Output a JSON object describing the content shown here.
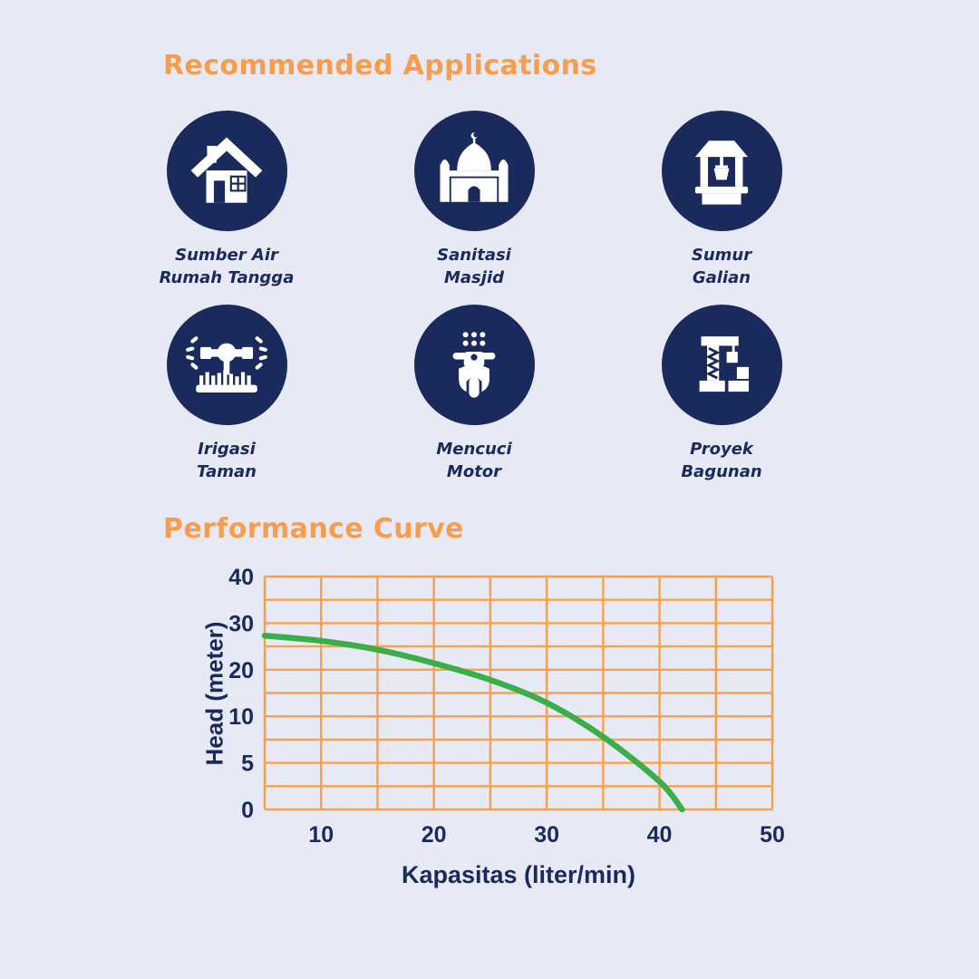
{
  "colors": {
    "background": "#e7eaf4",
    "navy": "#1b2a5c",
    "orange": "#f89c4d",
    "grid_orange": "#f6a14f",
    "green": "#3cae49",
    "white": "#ffffff"
  },
  "applications": {
    "heading": "Recommended Applications",
    "items": [
      {
        "icon": "house-icon",
        "label_lines": [
          "Sumber Air",
          "Rumah Tangga"
        ]
      },
      {
        "icon": "mosque-icon",
        "label_lines": [
          "Sanitasi",
          "Masjid"
        ]
      },
      {
        "icon": "well-icon",
        "label_lines": [
          "Sumur",
          "Galian"
        ]
      },
      {
        "icon": "sprinkler-icon",
        "label_lines": [
          "Irigasi",
          "Taman"
        ]
      },
      {
        "icon": "motorbike-icon",
        "label_lines": [
          "Mencuci",
          "Motor"
        ]
      },
      {
        "icon": "crane-icon",
        "label_lines": [
          "Proyek",
          "Bagunan"
        ]
      }
    ]
  },
  "performance": {
    "heading": "Performance Curve"
  },
  "chart_data": {
    "type": "line",
    "title": "Performance Curve",
    "xlabel": "Kapasitas (liter/min)",
    "ylabel": "Head (meter)",
    "x_range": [
      5,
      50
    ],
    "x_gridline_values": [
      5,
      10,
      15,
      20,
      25,
      30,
      35,
      40,
      45,
      50
    ],
    "x_tick_labels": [
      "10",
      "20",
      "30",
      "40",
      "50"
    ],
    "x_tick_positions": [
      10,
      20,
      30,
      40,
      50
    ],
    "y_gridline_values": [
      40,
      35,
      30,
      25,
      20,
      15,
      10,
      7.5,
      5,
      2.5,
      0
    ],
    "y_tick_labels": [
      "40",
      "30",
      "20",
      "10",
      "5",
      "0"
    ],
    "y_tick_positions": [
      40,
      30,
      20,
      10,
      5,
      0
    ],
    "axis_note": "y axis is non-linear: 5 m per gridline from 40 to 10, 2.5 m per gridline from 10 to 0",
    "grid": true,
    "legend": false,
    "series": [
      {
        "name": "head-vs-capacity",
        "points": [
          [
            5,
            27.3
          ],
          [
            10,
            26.2
          ],
          [
            15,
            24.3
          ],
          [
            20,
            21.4
          ],
          [
            25,
            17.8
          ],
          [
            30,
            12.9
          ],
          [
            35,
            7.8
          ],
          [
            40,
            3.0
          ],
          [
            42,
            0
          ]
        ]
      }
    ],
    "curve_color": "#3cae49",
    "grid_color": "#f6a14f",
    "label_color": "#1b2a5c"
  }
}
